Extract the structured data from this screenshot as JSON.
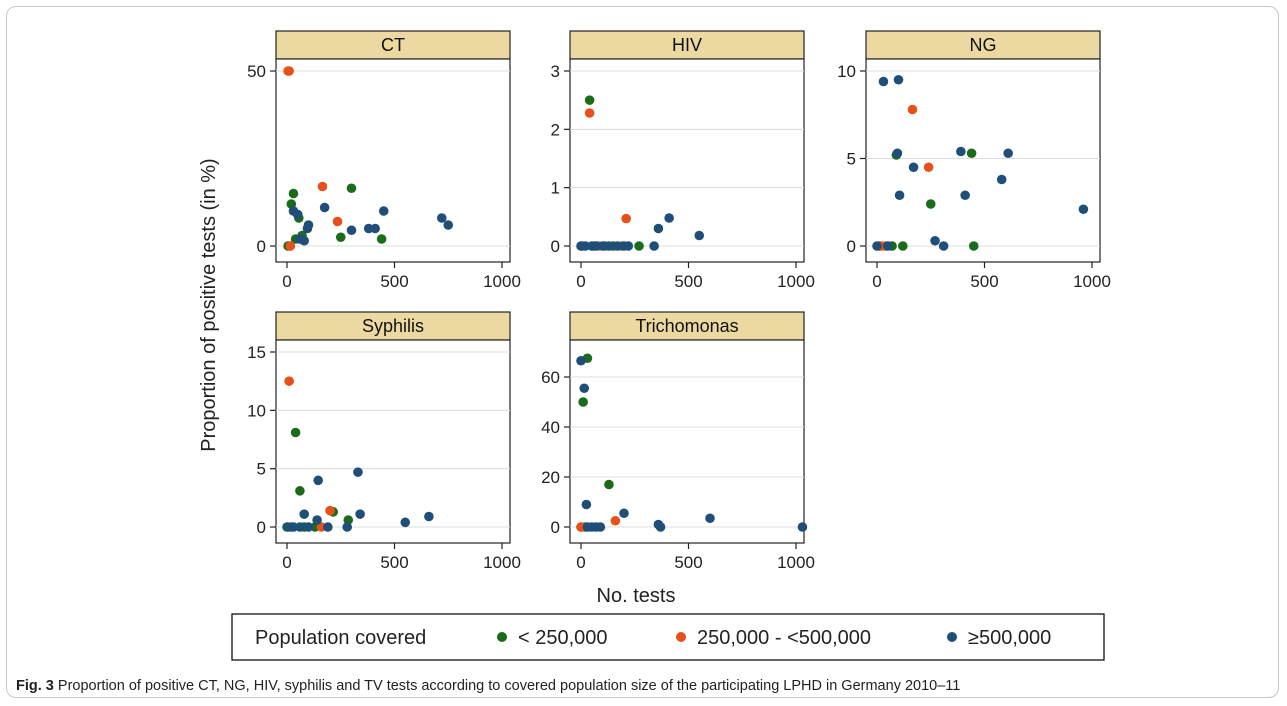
{
  "caption": {
    "label": "Fig. 3",
    "text": "Proportion of positive CT, NG, HIV, syphilis and TV tests according to covered population size of the participating LPHD in Germany 2010–11"
  },
  "figure": {
    "ylabel": "Proportion of positive tests (in %)",
    "xlabel": "No. tests",
    "legend": {
      "title": "Population covered",
      "entries": [
        {
          "key": "small",
          "label": "< 250,000",
          "color": "#1a6b1a"
        },
        {
          "key": "mid",
          "label": "250,000 - <500,000",
          "color": "#e8501a"
        },
        {
          "key": "large",
          "label": "≥500,000",
          "color": "#1f4e79"
        }
      ]
    },
    "strip_color": "#ecd9a1"
  },
  "chart_data": [
    {
      "type": "scatter",
      "title": "CT",
      "xlim": [
        0,
        1000
      ],
      "ylim": [
        0,
        50
      ],
      "xticks": [
        "0",
        "500",
        "1000"
      ],
      "yticks": [
        0,
        50
      ],
      "grid": true,
      "series": [
        {
          "name": "< 250,000",
          "points": [
            [
              5,
              0
            ],
            [
              15,
              0
            ],
            [
              20,
              12
            ],
            [
              30,
              15
            ],
            [
              40,
              2
            ],
            [
              55,
              8
            ],
            [
              70,
              3
            ],
            [
              300,
              16.5
            ],
            [
              250,
              2.5
            ],
            [
              440,
              2
            ]
          ]
        },
        {
          "name": "250,000 - <500,000",
          "points": [
            [
              5,
              50
            ],
            [
              10,
              50
            ],
            [
              15,
              0
            ],
            [
              165,
              17
            ],
            [
              235,
              7
            ]
          ]
        },
        {
          "name": "≥500,000",
          "points": [
            [
              30,
              10
            ],
            [
              50,
              9
            ],
            [
              60,
              2
            ],
            [
              80,
              1.5
            ],
            [
              95,
              5
            ],
            [
              100,
              6
            ],
            [
              175,
              11
            ],
            [
              300,
              4.5
            ],
            [
              380,
              5
            ],
            [
              410,
              5
            ],
            [
              450,
              10
            ],
            [
              720,
              8
            ],
            [
              750,
              6
            ]
          ]
        }
      ]
    },
    {
      "type": "scatter",
      "title": "HIV",
      "xlim": [
        0,
        1000
      ],
      "ylim": [
        0,
        3
      ],
      "xticks": [
        "0",
        "500",
        "1000"
      ],
      "yticks": [
        0,
        1,
        2,
        3
      ],
      "grid": true,
      "series": [
        {
          "name": "< 250,000",
          "points": [
            [
              5,
              0
            ],
            [
              40,
              2.5
            ],
            [
              60,
              0
            ],
            [
              110,
              0
            ],
            [
              150,
              0
            ],
            [
              270,
              0
            ]
          ]
        },
        {
          "name": "250,000 - <500,000",
          "points": [
            [
              40,
              2.28
            ],
            [
              210,
              0.47
            ],
            [
              80,
              0
            ],
            [
              190,
              0
            ]
          ]
        },
        {
          "name": "≥500,000",
          "points": [
            [
              0,
              0
            ],
            [
              20,
              0
            ],
            [
              50,
              0
            ],
            [
              70,
              0
            ],
            [
              100,
              0
            ],
            [
              130,
              0
            ],
            [
              170,
              0
            ],
            [
              200,
              0
            ],
            [
              220,
              0
            ],
            [
              360,
              0.3
            ],
            [
              410,
              0.48
            ],
            [
              550,
              0.18
            ],
            [
              340,
              0
            ]
          ]
        }
      ]
    },
    {
      "type": "scatter",
      "title": "NG",
      "xlim": [
        0,
        1000
      ],
      "ylim": [
        0,
        10
      ],
      "xticks": [
        "0",
        "500",
        "1000"
      ],
      "yticks": [
        0,
        5,
        10
      ],
      "grid": true,
      "series": [
        {
          "name": "< 250,000",
          "points": [
            [
              10,
              0
            ],
            [
              70,
              0
            ],
            [
              90,
              5.2
            ],
            [
              120,
              0
            ],
            [
              250,
              2.4
            ],
            [
              440,
              5.3
            ],
            [
              450,
              0
            ]
          ]
        },
        {
          "name": "250,000 - <500,000",
          "points": [
            [
              10,
              0
            ],
            [
              20,
              0
            ],
            [
              40,
              0
            ],
            [
              165,
              7.8
            ],
            [
              240,
              4.5
            ]
          ]
        },
        {
          "name": "≥500,000",
          "points": [
            [
              0,
              0
            ],
            [
              30,
              9.4
            ],
            [
              50,
              0
            ],
            [
              100,
              9.5
            ],
            [
              95,
              5.3
            ],
            [
              105,
              2.9
            ],
            [
              170,
              4.5
            ],
            [
              270,
              0.3
            ],
            [
              310,
              0
            ],
            [
              390,
              5.4
            ],
            [
              410,
              2.9
            ],
            [
              580,
              3.8
            ],
            [
              610,
              5.3
            ],
            [
              960,
              2.1
            ]
          ]
        }
      ]
    },
    {
      "type": "scatter",
      "title": "Syphilis",
      "xlim": [
        0,
        1000
      ],
      "ylim": [
        0,
        15
      ],
      "xticks": [
        "0",
        "500",
        "1000"
      ],
      "yticks": [
        0,
        5,
        10,
        15
      ],
      "grid": true,
      "series": [
        {
          "name": "< 250,000",
          "points": [
            [
              0,
              0
            ],
            [
              20,
              0
            ],
            [
              40,
              8.1
            ],
            [
              60,
              3.1
            ],
            [
              80,
              0
            ],
            [
              130,
              0
            ],
            [
              285,
              0.6
            ],
            [
              215,
              1.3
            ]
          ]
        },
        {
          "name": "250,000 - <500,000",
          "points": [
            [
              10,
              12.5
            ],
            [
              160,
              0
            ],
            [
              200,
              1.4
            ]
          ]
        },
        {
          "name": "≥500,000",
          "points": [
            [
              5,
              0
            ],
            [
              30,
              0
            ],
            [
              60,
              0
            ],
            [
              80,
              1.1
            ],
            [
              100,
              0
            ],
            [
              140,
              0.6
            ],
            [
              145,
              4
            ],
            [
              190,
              0
            ],
            [
              280,
              0
            ],
            [
              330,
              4.7
            ],
            [
              340,
              1.1
            ],
            [
              550,
              0.4
            ],
            [
              660,
              0.9
            ]
          ]
        }
      ]
    },
    {
      "type": "scatter",
      "title": "Trichomonas",
      "xlim": [
        0,
        1000
      ],
      "ylim": [
        0,
        70
      ],
      "xticks": [
        "0",
        "500",
        "1000"
      ],
      "yticks": [
        0,
        20,
        40,
        60
      ],
      "grid": true,
      "series": [
        {
          "name": "< 250,000",
          "points": [
            [
              0,
              0
            ],
            [
              10,
              50
            ],
            [
              30,
              67.5
            ],
            [
              130,
              17
            ],
            [
              20,
              0
            ]
          ]
        },
        {
          "name": "250,000 - <500,000",
          "points": [
            [
              160,
              2.5
            ],
            [
              0,
              0
            ]
          ]
        },
        {
          "name": "≥500,000",
          "points": [
            [
              0,
              66.5
            ],
            [
              15,
              55.5
            ],
            [
              25,
              9
            ],
            [
              30,
              0
            ],
            [
              50,
              0
            ],
            [
              70,
              0
            ],
            [
              90,
              0
            ],
            [
              200,
              5.5
            ],
            [
              360,
              1
            ],
            [
              370,
              0
            ],
            [
              600,
              3.5
            ],
            [
              1030,
              0
            ]
          ]
        }
      ]
    }
  ]
}
